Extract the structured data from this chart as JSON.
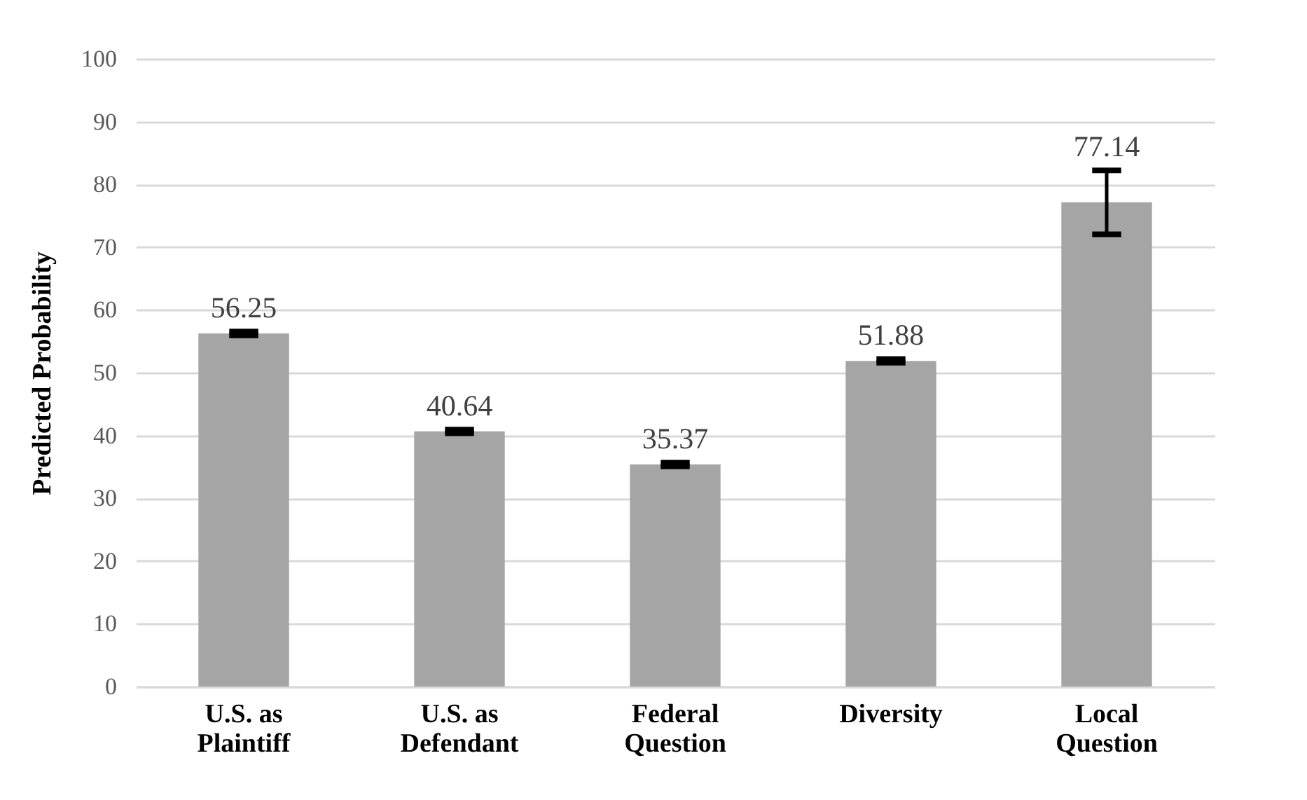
{
  "chart_data": {
    "type": "bar",
    "ylabel": "Predicted Probability",
    "categories": [
      "U.S. as Plaintiff",
      "U.S. as Defendant",
      "Federal Question",
      "Diversity",
      "Local Question"
    ],
    "values": [
      56.25,
      40.64,
      35.37,
      51.88,
      77.14
    ],
    "errors": [
      0.3,
      0.3,
      0.3,
      0.3,
      5.1
    ],
    "color": "#a5a5a5",
    "data_labels": true,
    "ylim": [
      0,
      100
    ],
    "yticks": [
      0,
      10,
      20,
      30,
      40,
      50,
      60,
      70,
      80,
      90,
      100
    ],
    "grid": "y"
  }
}
